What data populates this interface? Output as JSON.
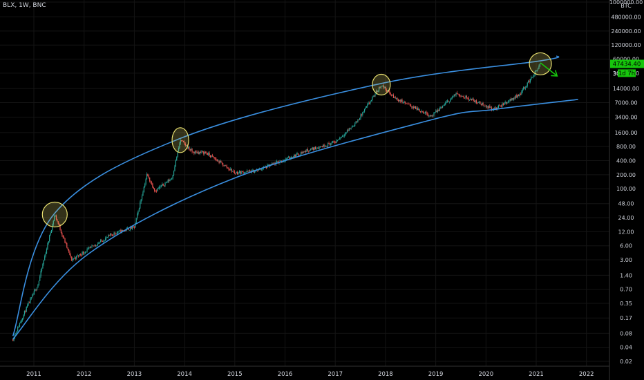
{
  "symbol_line": "BLX, 1W, BNC",
  "currency": "BTC",
  "price_tag": {
    "price": "47434.40",
    "countdown": "1d 7h",
    "partial_label": "30"
  },
  "colors": {
    "background": "#000000",
    "up": "#26a69a",
    "down": "#ef5350",
    "channel": "#3a8fe0",
    "highlight": "#e8e070",
    "arrow": "#16c60c",
    "price_tag_bg": "#16c60c"
  },
  "chart_data": {
    "type": "candlestick",
    "scale": "log",
    "interval": "1W",
    "y_ticks": [
      "1000000.00",
      "480000.00",
      "240000.00",
      "120000.00",
      "60000.00",
      "30000.00",
      "14000.00",
      "7000.00",
      "3400.00",
      "1600.00",
      "800.00",
      "400.00",
      "200.00",
      "100.00",
      "48.00",
      "24.00",
      "12.00",
      "6.00",
      "3.00",
      "1.40",
      "0.70",
      "0.35",
      "0.17",
      "0.08",
      "0.04",
      "0.02"
    ],
    "x_ticks": [
      "2011",
      "2012",
      "2013",
      "2014",
      "2015",
      "2016",
      "2017",
      "2018",
      "2019",
      "2020",
      "2021",
      "2022"
    ],
    "price_path": [
      {
        "date": "2010-08",
        "price": 0.06
      },
      {
        "date": "2010-11",
        "price": 0.25
      },
      {
        "date": "2011-02",
        "price": 0.9
      },
      {
        "date": "2011-06",
        "price": 28
      },
      {
        "date": "2011-10",
        "price": 3
      },
      {
        "date": "2012-02",
        "price": 5
      },
      {
        "date": "2012-08",
        "price": 11
      },
      {
        "date": "2013-01",
        "price": 15
      },
      {
        "date": "2013-04",
        "price": 200
      },
      {
        "date": "2013-06",
        "price": 90
      },
      {
        "date": "2013-10",
        "price": 170
      },
      {
        "date": "2013-12",
        "price": 1100
      },
      {
        "date": "2014-03",
        "price": 600
      },
      {
        "date": "2014-06",
        "price": 600
      },
      {
        "date": "2015-01",
        "price": 220
      },
      {
        "date": "2015-06",
        "price": 240
      },
      {
        "date": "2016-01",
        "price": 420
      },
      {
        "date": "2016-06",
        "price": 650
      },
      {
        "date": "2017-01",
        "price": 1000
      },
      {
        "date": "2017-06",
        "price": 2600
      },
      {
        "date": "2017-12",
        "price": 17000
      },
      {
        "date": "2018-03",
        "price": 9000
      },
      {
        "date": "2018-12",
        "price": 3600
      },
      {
        "date": "2019-06",
        "price": 11000
      },
      {
        "date": "2020-03",
        "price": 5000
      },
      {
        "date": "2020-09",
        "price": 10500
      },
      {
        "date": "2021-01",
        "price": 33000
      },
      {
        "date": "2021-02",
        "price": 47434.4
      }
    ],
    "highlighted_peaks": [
      {
        "date": "2011-06",
        "price": 28
      },
      {
        "date": "2013-12",
        "price": 1100
      },
      {
        "date": "2017-12",
        "price": 17000
      },
      {
        "date": "2021-02",
        "price": 47434.4
      }
    ],
    "channel": {
      "upper": [
        {
          "date": "2010-08",
          "price": 0.07
        },
        {
          "date": "2011-06",
          "price": 30
        },
        {
          "date": "2013-12",
          "price": 1200
        },
        {
          "date": "2017-12",
          "price": 18000
        },
        {
          "date": "2021-02",
          "price": 55000
        },
        {
          "date": "2021-06",
          "price": 70000
        }
      ],
      "lower": [
        {
          "date": "2010-08",
          "price": 0.06
        },
        {
          "date": "2012-02",
          "price": 4
        },
        {
          "date": "2015-01",
          "price": 170
        },
        {
          "date": "2018-12",
          "price": 3000
        },
        {
          "date": "2020-03",
          "price": 5000
        },
        {
          "date": "2021-11",
          "price": 8200
        }
      ]
    },
    "projection_arrow": {
      "from": {
        "date": "2021-02",
        "price": 50000
      },
      "to": {
        "date": "2021-06",
        "price": 26000
      }
    }
  }
}
